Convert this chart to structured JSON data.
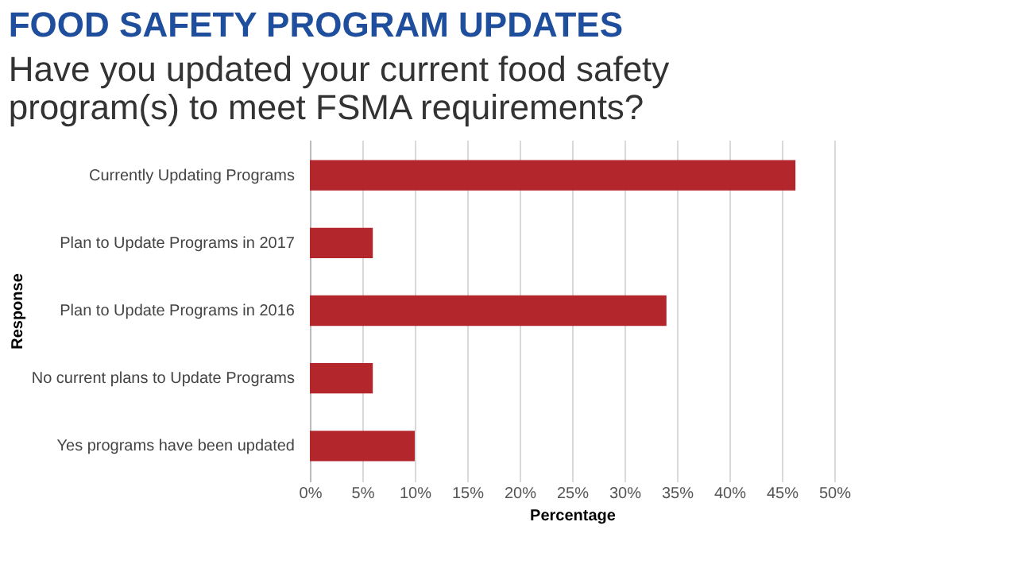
{
  "chart_data": {
    "type": "bar",
    "orientation": "horizontal",
    "title": "FOOD SAFETY PROGRAM UPDATES",
    "subtitle": "Have you updated your current food safety program(s) to meet FSMA requirements?",
    "xlabel": "Percentage",
    "ylabel": "Response",
    "categories": [
      "Currently Updating Programs",
      "Plan to Update Programs in 2017",
      "Plan to Update Programs in 2016",
      "No current plans to Update Programs",
      "Yes programs have been updated"
    ],
    "values": [
      46.3,
      6,
      34,
      6,
      10
    ],
    "color": "#b3262c",
    "xlim": [
      0,
      50
    ],
    "xticks": [
      {
        "value": 0,
        "label": "0%"
      },
      {
        "value": 5,
        "label": "5%"
      },
      {
        "value": 10,
        "label": "10%"
      },
      {
        "value": 15,
        "label": "15%"
      },
      {
        "value": 20,
        "label": "20%"
      },
      {
        "value": 25,
        "label": "25%"
      },
      {
        "value": 30,
        "label": "30%"
      },
      {
        "value": 35,
        "label": "35%"
      },
      {
        "value": 40,
        "label": "40%"
      },
      {
        "value": 45,
        "label": "45%"
      },
      {
        "value": 50,
        "label": "50%"
      }
    ],
    "grid": "x"
  }
}
